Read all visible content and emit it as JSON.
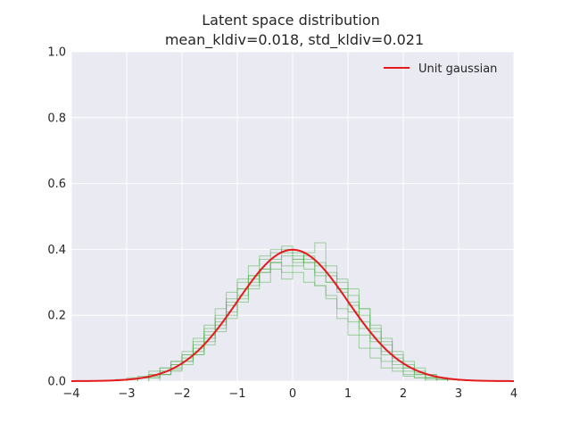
{
  "chart_data": {
    "type": "line",
    "title": "Latent space distribution",
    "subtitle": "mean_kldiv=0.018, std_kldiv=0.021",
    "xlabel": "",
    "ylabel": "",
    "xlim": [
      -4,
      4
    ],
    "ylim": [
      0,
      1.0
    ],
    "x_ticks": [
      "−4",
      "−3",
      "−2",
      "−1",
      "0",
      "1",
      "2",
      "3",
      "4"
    ],
    "x_tick_values": [
      -4,
      -3,
      -2,
      -1,
      0,
      1,
      2,
      3,
      4
    ],
    "y_ticks": [
      "0.0",
      "0.2",
      "0.4",
      "0.6",
      "0.8",
      "1.0"
    ],
    "y_tick_values": [
      0.0,
      0.2,
      0.4,
      0.6,
      0.8,
      1.0
    ],
    "grid": true,
    "legend": {
      "placement": "top-right",
      "entries": [
        "Unit gaussian"
      ]
    },
    "series": [
      {
        "name": "Unit gaussian",
        "kind": "line",
        "color": "#e41a1c",
        "function": "standard-normal-pdf"
      }
    ],
    "histograms": [
      {
        "color": "#4daf4a",
        "edges": [
          -2.8,
          -2.6,
          -2.4,
          -2.2,
          -2.0,
          -1.8,
          -1.6,
          -1.4,
          -1.2,
          -1.0,
          -0.8,
          -0.6,
          -0.4,
          -0.2,
          0.0,
          0.2,
          0.4,
          0.6,
          0.8,
          1.0,
          1.2,
          1.4,
          1.6,
          1.8,
          2.0,
          2.2,
          2.4,
          2.6,
          2.8
        ],
        "density": [
          0.01,
          0.02,
          0.03,
          0.05,
          0.07,
          0.1,
          0.15,
          0.19,
          0.24,
          0.3,
          0.32,
          0.37,
          0.39,
          0.41,
          0.38,
          0.36,
          0.33,
          0.3,
          0.27,
          0.21,
          0.16,
          0.12,
          0.08,
          0.05,
          0.03,
          0.02,
          0.01,
          0.005
        ]
      },
      {
        "color": "#4daf4a",
        "edges": [
          -3.0,
          -2.8,
          -2.6,
          -2.4,
          -2.2,
          -2.0,
          -1.8,
          -1.6,
          -1.4,
          -1.2,
          -1.0,
          -0.8,
          -0.6,
          -0.4,
          -0.2,
          0.0,
          0.2,
          0.4,
          0.6,
          0.8,
          1.0,
          1.2,
          1.4,
          1.6,
          1.8,
          2.0,
          2.2,
          2.4,
          2.6
        ],
        "density": [
          0.005,
          0.01,
          0.02,
          0.04,
          0.06,
          0.09,
          0.13,
          0.17,
          0.22,
          0.27,
          0.31,
          0.35,
          0.38,
          0.4,
          0.39,
          0.37,
          0.34,
          0.29,
          0.25,
          0.19,
          0.14,
          0.1,
          0.07,
          0.04,
          0.03,
          0.015,
          0.01,
          0.005
        ]
      },
      {
        "color": "#4daf4a",
        "edges": [
          -2.6,
          -2.4,
          -2.2,
          -2.0,
          -1.8,
          -1.6,
          -1.4,
          -1.2,
          -1.0,
          -0.8,
          -0.6,
          -0.4,
          -0.2,
          0.0,
          0.2,
          0.4,
          0.6,
          0.8,
          1.0,
          1.2,
          1.4,
          1.6,
          1.8,
          2.0,
          2.2,
          2.4,
          2.6,
          2.8,
          3.0
        ],
        "density": [
          0.01,
          0.02,
          0.04,
          0.06,
          0.09,
          0.12,
          0.17,
          0.2,
          0.26,
          0.29,
          0.33,
          0.36,
          0.35,
          0.37,
          0.38,
          0.36,
          0.33,
          0.31,
          0.26,
          0.22,
          0.17,
          0.13,
          0.09,
          0.06,
          0.04,
          0.02,
          0.01,
          0.005
        ]
      },
      {
        "color": "#4daf4a",
        "edges": [
          -2.8,
          -2.6,
          -2.4,
          -2.2,
          -2.0,
          -1.8,
          -1.6,
          -1.4,
          -1.2,
          -1.0,
          -0.8,
          -0.6,
          -0.4,
          -0.2,
          0.0,
          0.2,
          0.4,
          0.6,
          0.8,
          1.0,
          1.2,
          1.4,
          1.6,
          1.8,
          2.0,
          2.2,
          2.4,
          2.6,
          2.8
        ],
        "density": [
          0.01,
          0.015,
          0.03,
          0.05,
          0.08,
          0.11,
          0.14,
          0.18,
          0.23,
          0.28,
          0.31,
          0.34,
          0.36,
          0.33,
          0.35,
          0.39,
          0.42,
          0.35,
          0.3,
          0.28,
          0.22,
          0.16,
          0.12,
          0.07,
          0.04,
          0.025,
          0.01,
          0.005
        ]
      },
      {
        "color": "#4daf4a",
        "edges": [
          -3.2,
          -3.0,
          -2.8,
          -2.6,
          -2.4,
          -2.2,
          -2.0,
          -1.8,
          -1.6,
          -1.4,
          -1.2,
          -1.0,
          -0.8,
          -0.6,
          -0.4,
          -0.2,
          0.0,
          0.2,
          0.4,
          0.6,
          0.8,
          1.0,
          1.2,
          1.4,
          1.6,
          1.8,
          2.0,
          2.2,
          2.4
        ],
        "density": [
          0.005,
          0.01,
          0.015,
          0.03,
          0.04,
          0.06,
          0.08,
          0.12,
          0.16,
          0.2,
          0.25,
          0.28,
          0.32,
          0.3,
          0.34,
          0.31,
          0.33,
          0.3,
          0.29,
          0.26,
          0.22,
          0.18,
          0.14,
          0.1,
          0.06,
          0.04,
          0.02,
          0.01
        ]
      },
      {
        "color": "#4daf4a",
        "edges": [
          -2.6,
          -2.4,
          -2.2,
          -2.0,
          -1.8,
          -1.6,
          -1.4,
          -1.2,
          -1.0,
          -0.8,
          -0.6,
          -0.4,
          -0.2,
          0.0,
          0.2,
          0.4,
          0.6,
          0.8,
          1.0,
          1.2,
          1.4,
          1.6,
          1.8,
          2.0,
          2.2,
          2.4,
          2.6,
          2.8,
          3.0
        ],
        "density": [
          0.01,
          0.02,
          0.035,
          0.06,
          0.08,
          0.13,
          0.16,
          0.21,
          0.25,
          0.3,
          0.34,
          0.37,
          0.38,
          0.36,
          0.37,
          0.35,
          0.32,
          0.28,
          0.24,
          0.2,
          0.15,
          0.11,
          0.08,
          0.05,
          0.03,
          0.02,
          0.01,
          0.005
        ]
      },
      {
        "color": "#4daf4a",
        "edges": [
          -2.4,
          -2.2,
          -2.0,
          -1.8,
          -1.6,
          -1.4,
          -1.2,
          -1.0,
          -0.8,
          -0.6,
          -0.4,
          -0.2,
          0.0,
          0.2,
          0.4,
          0.6,
          0.8,
          1.0,
          1.2,
          1.4,
          1.6,
          1.8,
          2.0,
          2.2,
          2.4,
          2.6,
          2.8
        ],
        "density": [
          0.02,
          0.03,
          0.05,
          0.08,
          0.11,
          0.15,
          0.19,
          0.24,
          0.28,
          0.33,
          0.36,
          0.4,
          0.39,
          0.36,
          0.32,
          0.3,
          0.28,
          0.23,
          0.18,
          0.13,
          0.09,
          0.06,
          0.04,
          0.02,
          0.01,
          0.005
        ]
      }
    ]
  }
}
